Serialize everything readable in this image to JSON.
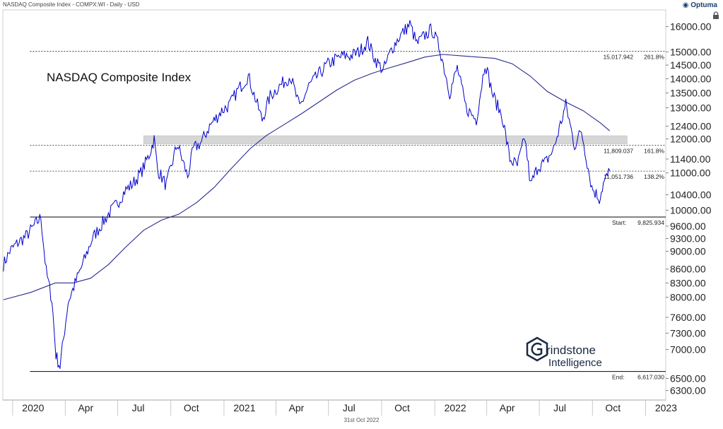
{
  "header": {
    "symbol_line": "NASDAQ Composite Index - COMPX:WI - Daily - USD",
    "brand": "Optuma",
    "footer_date": "31st Oct 2022"
  },
  "watermark": {
    "line1": "rindstone",
    "line2": "Intelligence"
  },
  "colors": {
    "price": "#0000cc",
    "ma": "#2b2b8f",
    "fib": "#222222",
    "zone": "#d6d6d6",
    "axis_text": "#222222"
  },
  "icons": {
    "brand_logo": "optuma-logo-icon",
    "lock": "lock-icon",
    "watermark_logo": "grindstone-g-hexagon-icon"
  },
  "chart_data": {
    "type": "line",
    "title": "NASDAQ Composite Index",
    "y_scale": "log",
    "ylim": [
      6150,
      16700
    ],
    "x_range": [
      "2019-12-15",
      "2023-02-05"
    ],
    "y_ticks": [
      "16000.00",
      "15000.00",
      "14500.00",
      "14000.00",
      "13500.00",
      "13000.00",
      "12400.00",
      "12000.00",
      "11400.00",
      "11000.00",
      "10400.00",
      "10000.00",
      "9600.00",
      "9300.00",
      "9000.00",
      "8600.00",
      "8300.00",
      "8000.00",
      "7600.00",
      "7300.00",
      "7000.00",
      "6500.00",
      "6300.00"
    ],
    "x_ticks": [
      {
        "date": "2020-01-01",
        "label": "2020",
        "major": true
      },
      {
        "date": "2020-04-01",
        "label": "Apr",
        "major": false
      },
      {
        "date": "2020-07-01",
        "label": "Jul",
        "major": false
      },
      {
        "date": "2020-10-01",
        "label": "Oct",
        "major": false
      },
      {
        "date": "2021-01-01",
        "label": "2021",
        "major": true
      },
      {
        "date": "2021-04-01",
        "label": "Apr",
        "major": false
      },
      {
        "date": "2021-07-01",
        "label": "Jul",
        "major": false
      },
      {
        "date": "2021-10-01",
        "label": "Oct",
        "major": false
      },
      {
        "date": "2022-01-01",
        "label": "2022",
        "major": true
      },
      {
        "date": "2022-04-01",
        "label": "Apr",
        "major": false
      },
      {
        "date": "2022-07-01",
        "label": "Jul",
        "major": false
      },
      {
        "date": "2022-10-01",
        "label": "Oct",
        "major": false
      },
      {
        "date": "2023-01-01",
        "label": "2023",
        "major": true
      }
    ],
    "series": [
      {
        "type": "price",
        "points": [
          [
            "2019-12-16",
            8700
          ],
          [
            "2019-12-27",
            9000
          ],
          [
            "2020-01-10",
            9200
          ],
          [
            "2020-01-24",
            9350
          ],
          [
            "2020-02-07",
            9600
          ],
          [
            "2020-02-19",
            9820
          ],
          [
            "2020-02-28",
            8550
          ],
          [
            "2020-03-09",
            7950
          ],
          [
            "2020-03-16",
            6900
          ],
          [
            "2020-03-23",
            6700
          ],
          [
            "2020-04-06",
            7900
          ],
          [
            "2020-04-20",
            8350
          ],
          [
            "2020-05-04",
            8800
          ],
          [
            "2020-05-18",
            9300
          ],
          [
            "2020-06-01",
            9600
          ],
          [
            "2020-06-15",
            9900
          ],
          [
            "2020-06-29",
            10150
          ],
          [
            "2020-07-13",
            10500
          ],
          [
            "2020-07-27",
            10700
          ],
          [
            "2020-08-10",
            11000
          ],
          [
            "2020-08-24",
            11500
          ],
          [
            "2020-09-02",
            12000
          ],
          [
            "2020-09-08",
            11100
          ],
          [
            "2020-09-23",
            10650
          ],
          [
            "2020-10-12",
            11850
          ],
          [
            "2020-10-30",
            10900
          ],
          [
            "2020-11-09",
            11700
          ],
          [
            "2020-11-23",
            11900
          ],
          [
            "2020-12-07",
            12400
          ],
          [
            "2020-12-28",
            12900
          ],
          [
            "2021-01-11",
            13100
          ],
          [
            "2021-01-25",
            13600
          ],
          [
            "2021-02-12",
            14100
          ],
          [
            "2021-03-08",
            12600
          ],
          [
            "2021-03-22",
            13400
          ],
          [
            "2021-04-05",
            13700
          ],
          [
            "2021-04-26",
            14100
          ],
          [
            "2021-05-12",
            13000
          ],
          [
            "2021-05-28",
            13750
          ],
          [
            "2021-06-14",
            14150
          ],
          [
            "2021-06-28",
            14500
          ],
          [
            "2021-07-12",
            14700
          ],
          [
            "2021-07-26",
            14850
          ],
          [
            "2021-08-09",
            14850
          ],
          [
            "2021-08-23",
            15000
          ],
          [
            "2021-09-07",
            15400
          ],
          [
            "2021-09-20",
            14700
          ],
          [
            "2021-10-04",
            14300
          ],
          [
            "2021-10-18",
            15100
          ],
          [
            "2021-11-01",
            15600
          ],
          [
            "2021-11-19",
            16100
          ],
          [
            "2021-12-01",
            15300
          ],
          [
            "2021-12-13",
            15600
          ],
          [
            "2021-12-27",
            15900
          ],
          [
            "2022-01-10",
            15100
          ],
          [
            "2022-01-27",
            13500
          ],
          [
            "2022-02-09",
            14400
          ],
          [
            "2022-02-24",
            13000
          ],
          [
            "2022-03-14",
            12600
          ],
          [
            "2022-03-29",
            14600
          ],
          [
            "2022-04-12",
            13400
          ],
          [
            "2022-04-28",
            12700
          ],
          [
            "2022-05-11",
            11400
          ],
          [
            "2022-05-24",
            11200
          ],
          [
            "2022-06-06",
            12050
          ],
          [
            "2022-06-16",
            10650
          ],
          [
            "2022-06-29",
            11200
          ],
          [
            "2022-07-12",
            11300
          ],
          [
            "2022-07-26",
            11700
          ],
          [
            "2022-08-16",
            13100
          ],
          [
            "2022-08-31",
            11800
          ],
          [
            "2022-09-12",
            12250
          ],
          [
            "2022-09-30",
            10600
          ],
          [
            "2022-10-13",
            10300
          ],
          [
            "2022-10-20",
            10700
          ],
          [
            "2022-10-31",
            11050
          ]
        ]
      },
      {
        "type": "moving_average",
        "points": [
          [
            "2019-12-16",
            7950
          ],
          [
            "2020-02-01",
            8100
          ],
          [
            "2020-03-15",
            8300
          ],
          [
            "2020-04-15",
            8300
          ],
          [
            "2020-05-15",
            8400
          ],
          [
            "2020-06-15",
            8700
          ],
          [
            "2020-07-15",
            9100
          ],
          [
            "2020-08-15",
            9500
          ],
          [
            "2020-09-15",
            9750
          ],
          [
            "2020-10-15",
            9900
          ],
          [
            "2020-11-15",
            10200
          ],
          [
            "2020-12-15",
            10600
          ],
          [
            "2021-01-15",
            11150
          ],
          [
            "2021-02-15",
            11700
          ],
          [
            "2021-03-15",
            12100
          ],
          [
            "2021-04-15",
            12450
          ],
          [
            "2021-05-15",
            12800
          ],
          [
            "2021-06-15",
            13200
          ],
          [
            "2021-07-15",
            13600
          ],
          [
            "2021-08-15",
            13950
          ],
          [
            "2021-09-15",
            14200
          ],
          [
            "2021-10-15",
            14400
          ],
          [
            "2021-11-15",
            14600
          ],
          [
            "2021-12-15",
            14800
          ],
          [
            "2022-01-15",
            14900
          ],
          [
            "2022-02-15",
            14850
          ],
          [
            "2022-03-15",
            14800
          ],
          [
            "2022-04-15",
            14750
          ],
          [
            "2022-05-15",
            14550
          ],
          [
            "2022-06-15",
            14100
          ],
          [
            "2022-07-15",
            13550
          ],
          [
            "2022-08-15",
            13200
          ],
          [
            "2022-09-15",
            12900
          ],
          [
            "2022-10-15",
            12500
          ],
          [
            "2022-10-31",
            12250
          ]
        ]
      }
    ],
    "levels": [
      {
        "value": 15017.942,
        "label": "15,017.942",
        "pct": "261.8%",
        "style": "dotted",
        "from": "2020-01-31"
      },
      {
        "value": 11809.037,
        "label": "11,809.037",
        "pct": "161.8%",
        "style": "dotted",
        "from": "2020-01-31"
      },
      {
        "value": 11051.736,
        "label": "11,051.736",
        "pct": "138.2%",
        "style": "dotted",
        "from": "2020-01-31"
      },
      {
        "value": 9825.934,
        "label": "9,825.934",
        "name": "Start:",
        "style": "solid",
        "from": "2020-01-31"
      },
      {
        "value": 6617.03,
        "label": "6,617.030",
        "name": "End:",
        "style": "solid",
        "from": "2020-01-31"
      }
    ],
    "resistance_zone": {
      "low": 11850,
      "high": 12100,
      "from": "2020-08-15",
      "to": "2022-11-30"
    }
  }
}
